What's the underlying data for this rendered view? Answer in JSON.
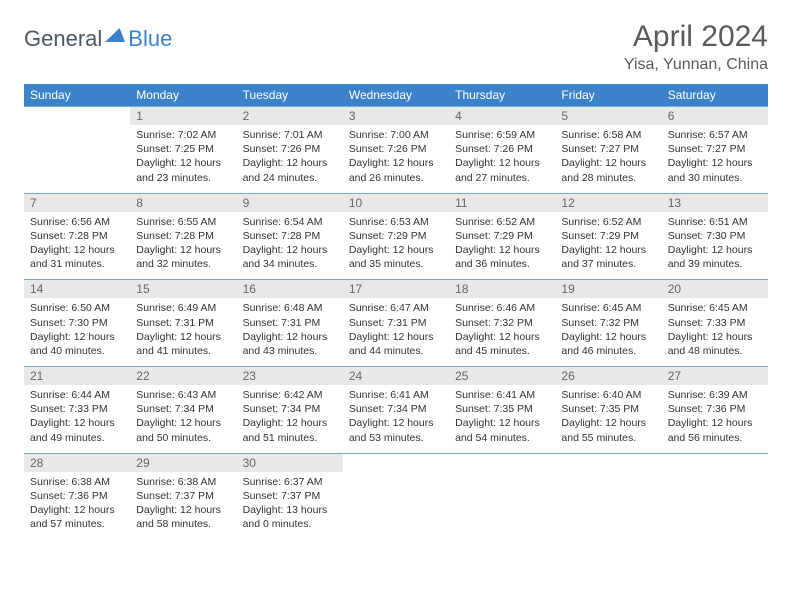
{
  "logo": {
    "dark": "General",
    "blue": "Blue"
  },
  "title": "April 2024",
  "location": "Yisa, Yunnan, China",
  "day_names": [
    "Sunday",
    "Monday",
    "Tuesday",
    "Wednesday",
    "Thursday",
    "Friday",
    "Saturday"
  ],
  "colors": {
    "header_bg": "#3b82c8",
    "header_text": "#ffffff",
    "daynum_bg": "#e8e8e8",
    "daynum_text": "#666666",
    "border": "#7aa8ce",
    "body_text": "#333333",
    "title_text": "#5a5a5a"
  },
  "weeks": [
    [
      {
        "n": "",
        "sunrise": "",
        "sunset": "",
        "daylight": ""
      },
      {
        "n": "1",
        "sunrise": "Sunrise: 7:02 AM",
        "sunset": "Sunset: 7:25 PM",
        "daylight": "Daylight: 12 hours and 23 minutes."
      },
      {
        "n": "2",
        "sunrise": "Sunrise: 7:01 AM",
        "sunset": "Sunset: 7:26 PM",
        "daylight": "Daylight: 12 hours and 24 minutes."
      },
      {
        "n": "3",
        "sunrise": "Sunrise: 7:00 AM",
        "sunset": "Sunset: 7:26 PM",
        "daylight": "Daylight: 12 hours and 26 minutes."
      },
      {
        "n": "4",
        "sunrise": "Sunrise: 6:59 AM",
        "sunset": "Sunset: 7:26 PM",
        "daylight": "Daylight: 12 hours and 27 minutes."
      },
      {
        "n": "5",
        "sunrise": "Sunrise: 6:58 AM",
        "sunset": "Sunset: 7:27 PM",
        "daylight": "Daylight: 12 hours and 28 minutes."
      },
      {
        "n": "6",
        "sunrise": "Sunrise: 6:57 AM",
        "sunset": "Sunset: 7:27 PM",
        "daylight": "Daylight: 12 hours and 30 minutes."
      }
    ],
    [
      {
        "n": "7",
        "sunrise": "Sunrise: 6:56 AM",
        "sunset": "Sunset: 7:28 PM",
        "daylight": "Daylight: 12 hours and 31 minutes."
      },
      {
        "n": "8",
        "sunrise": "Sunrise: 6:55 AM",
        "sunset": "Sunset: 7:28 PM",
        "daylight": "Daylight: 12 hours and 32 minutes."
      },
      {
        "n": "9",
        "sunrise": "Sunrise: 6:54 AM",
        "sunset": "Sunset: 7:28 PM",
        "daylight": "Daylight: 12 hours and 34 minutes."
      },
      {
        "n": "10",
        "sunrise": "Sunrise: 6:53 AM",
        "sunset": "Sunset: 7:29 PM",
        "daylight": "Daylight: 12 hours and 35 minutes."
      },
      {
        "n": "11",
        "sunrise": "Sunrise: 6:52 AM",
        "sunset": "Sunset: 7:29 PM",
        "daylight": "Daylight: 12 hours and 36 minutes."
      },
      {
        "n": "12",
        "sunrise": "Sunrise: 6:52 AM",
        "sunset": "Sunset: 7:29 PM",
        "daylight": "Daylight: 12 hours and 37 minutes."
      },
      {
        "n": "13",
        "sunrise": "Sunrise: 6:51 AM",
        "sunset": "Sunset: 7:30 PM",
        "daylight": "Daylight: 12 hours and 39 minutes."
      }
    ],
    [
      {
        "n": "14",
        "sunrise": "Sunrise: 6:50 AM",
        "sunset": "Sunset: 7:30 PM",
        "daylight": "Daylight: 12 hours and 40 minutes."
      },
      {
        "n": "15",
        "sunrise": "Sunrise: 6:49 AM",
        "sunset": "Sunset: 7:31 PM",
        "daylight": "Daylight: 12 hours and 41 minutes."
      },
      {
        "n": "16",
        "sunrise": "Sunrise: 6:48 AM",
        "sunset": "Sunset: 7:31 PM",
        "daylight": "Daylight: 12 hours and 43 minutes."
      },
      {
        "n": "17",
        "sunrise": "Sunrise: 6:47 AM",
        "sunset": "Sunset: 7:31 PM",
        "daylight": "Daylight: 12 hours and 44 minutes."
      },
      {
        "n": "18",
        "sunrise": "Sunrise: 6:46 AM",
        "sunset": "Sunset: 7:32 PM",
        "daylight": "Daylight: 12 hours and 45 minutes."
      },
      {
        "n": "19",
        "sunrise": "Sunrise: 6:45 AM",
        "sunset": "Sunset: 7:32 PM",
        "daylight": "Daylight: 12 hours and 46 minutes."
      },
      {
        "n": "20",
        "sunrise": "Sunrise: 6:45 AM",
        "sunset": "Sunset: 7:33 PM",
        "daylight": "Daylight: 12 hours and 48 minutes."
      }
    ],
    [
      {
        "n": "21",
        "sunrise": "Sunrise: 6:44 AM",
        "sunset": "Sunset: 7:33 PM",
        "daylight": "Daylight: 12 hours and 49 minutes."
      },
      {
        "n": "22",
        "sunrise": "Sunrise: 6:43 AM",
        "sunset": "Sunset: 7:34 PM",
        "daylight": "Daylight: 12 hours and 50 minutes."
      },
      {
        "n": "23",
        "sunrise": "Sunrise: 6:42 AM",
        "sunset": "Sunset: 7:34 PM",
        "daylight": "Daylight: 12 hours and 51 minutes."
      },
      {
        "n": "24",
        "sunrise": "Sunrise: 6:41 AM",
        "sunset": "Sunset: 7:34 PM",
        "daylight": "Daylight: 12 hours and 53 minutes."
      },
      {
        "n": "25",
        "sunrise": "Sunrise: 6:41 AM",
        "sunset": "Sunset: 7:35 PM",
        "daylight": "Daylight: 12 hours and 54 minutes."
      },
      {
        "n": "26",
        "sunrise": "Sunrise: 6:40 AM",
        "sunset": "Sunset: 7:35 PM",
        "daylight": "Daylight: 12 hours and 55 minutes."
      },
      {
        "n": "27",
        "sunrise": "Sunrise: 6:39 AM",
        "sunset": "Sunset: 7:36 PM",
        "daylight": "Daylight: 12 hours and 56 minutes."
      }
    ],
    [
      {
        "n": "28",
        "sunrise": "Sunrise: 6:38 AM",
        "sunset": "Sunset: 7:36 PM",
        "daylight": "Daylight: 12 hours and 57 minutes."
      },
      {
        "n": "29",
        "sunrise": "Sunrise: 6:38 AM",
        "sunset": "Sunset: 7:37 PM",
        "daylight": "Daylight: 12 hours and 58 minutes."
      },
      {
        "n": "30",
        "sunrise": "Sunrise: 6:37 AM",
        "sunset": "Sunset: 7:37 PM",
        "daylight": "Daylight: 13 hours and 0 minutes."
      },
      {
        "n": "",
        "sunrise": "",
        "sunset": "",
        "daylight": ""
      },
      {
        "n": "",
        "sunrise": "",
        "sunset": "",
        "daylight": ""
      },
      {
        "n": "",
        "sunrise": "",
        "sunset": "",
        "daylight": ""
      },
      {
        "n": "",
        "sunrise": "",
        "sunset": "",
        "daylight": ""
      }
    ]
  ]
}
